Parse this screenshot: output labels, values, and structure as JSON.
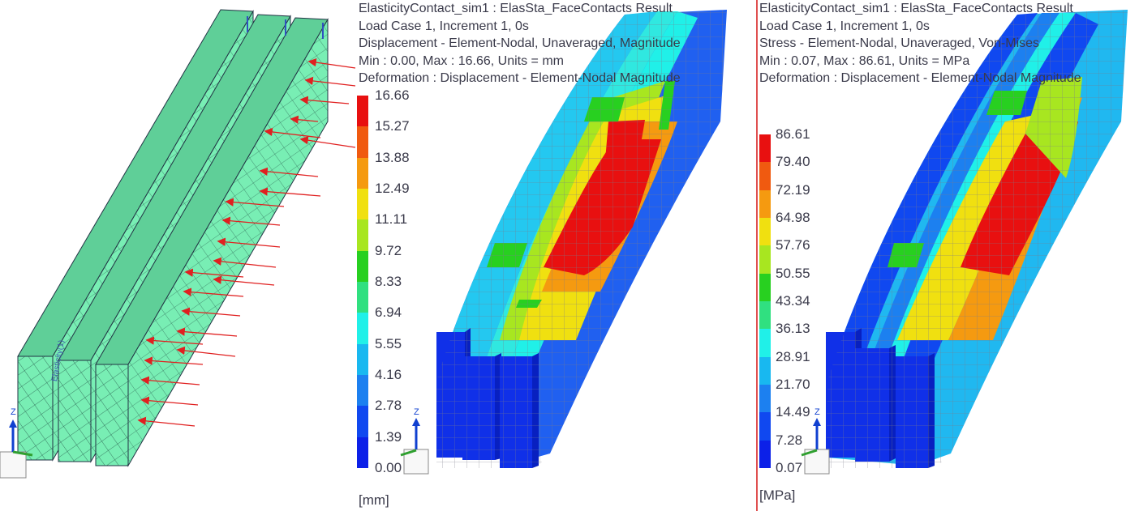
{
  "views": {
    "undeformed": {
      "triad_label": "Z",
      "mesh_label": "Elasticity(1)"
    },
    "displacement": {
      "header": [
        "ElasticityContact_sim1 : ElasSta_FaceContacts Result",
        "Load Case 1, Increment 1, 0s",
        "Displacement - Element-Nodal, Unaveraged, Magnitude",
        "Min : 0.00, Max : 16.66, Units = mm",
        "Deformation : Displacement - Element-Nodal Magnitude"
      ],
      "legend_labels": [
        "16.66",
        "15.27",
        "13.88",
        "12.49",
        "11.11",
        "9.72",
        "8.33",
        "6.94",
        "5.55",
        "4.16",
        "2.78",
        "1.39",
        "0.00"
      ],
      "units": "[mm]",
      "triad_label": "Z"
    },
    "stress": {
      "header": [
        "ElasticityContact_sim1 : ElasSta_FaceContacts Result",
        "Load Case 1, Increment 1, 0s",
        "Stress - Element-Nodal, Unaveraged, Von-Mises",
        "Min : 0.07, Max : 86.61, Units = MPa",
        "Deformation : Displacement - Element-Nodal Magnitude"
      ],
      "legend_labels": [
        "86.61",
        "79.40",
        "72.19",
        "64.98",
        "57.76",
        "50.55",
        "43.34",
        "36.13",
        "28.91",
        "21.70",
        "14.49",
        "7.28",
        "0.07"
      ],
      "units": "[MPa]",
      "triad_label": "Z"
    }
  },
  "colors": {
    "legend": [
      "#e81010",
      "#f05a10",
      "#f59a10",
      "#f0e010",
      "#a8e620",
      "#28d020",
      "#30e080",
      "#20f0e8",
      "#18b8f0",
      "#1c80f0",
      "#1048f0",
      "#0c20e8"
    ],
    "mesh_fill": "#78eeb4",
    "load_arrow": "#e02020",
    "divider": "#e05050"
  }
}
